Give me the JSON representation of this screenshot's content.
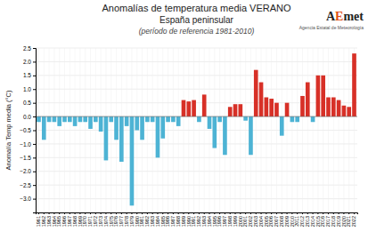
{
  "chart_data": {
    "type": "bar",
    "title": "Anomalías de temperatura media VERANO",
    "subtitle": [
      "España peninsular",
      "(período de referencia 1981-2010)"
    ],
    "y_label": "Anomalía Temp media (°C)",
    "annotations": [
      {
        "text": "A",
        "color": "#222222"
      },
      {
        "text": "E",
        "color": "#e05010"
      },
      {
        "text": "met",
        "color": "#222222"
      },
      {
        "text": "Agencia Estatal de Meteorología",
        "color": "#555555"
      }
    ],
    "categories": [
      "1961",
      "1962",
      "1963",
      "1964",
      "1965",
      "1966",
      "1967",
      "1968",
      "1969",
      "1970",
      "1971",
      "1972",
      "1973",
      "1974",
      "1975",
      "1976",
      "1977",
      "1978",
      "1979",
      "1980",
      "1981",
      "1982",
      "1983",
      "1984",
      "1985",
      "1986",
      "1987",
      "1988",
      "1989",
      "1990",
      "1991",
      "1992",
      "1993",
      "1994",
      "1995",
      "1996",
      "1997",
      "1998",
      "1999",
      "2000",
      "2001",
      "2002",
      "2003",
      "2004",
      "2005",
      "2006",
      "2007",
      "2008",
      "2009",
      "2010",
      "2011",
      "2012",
      "2013",
      "2014",
      "2015",
      "2016",
      "2017",
      "2018",
      "2019",
      "2020",
      "2021",
      "2022"
    ],
    "values": [
      -0.2,
      -0.85,
      -0.2,
      -0.2,
      -0.35,
      -0.2,
      -0.2,
      -0.35,
      -0.2,
      -0.2,
      -0.45,
      -0.2,
      -0.55,
      -1.6,
      -0.2,
      -0.85,
      -1.65,
      -0.35,
      -3.25,
      -0.5,
      -0.85,
      -0.2,
      -0.2,
      -1.5,
      -0.8,
      -0.2,
      -0.2,
      -0.35,
      0.6,
      0.55,
      0.6,
      -0.2,
      0.8,
      -0.45,
      -1.15,
      -0.2,
      -1.4,
      0.35,
      0.45,
      0.45,
      -0.15,
      -1.4,
      1.7,
      1.25,
      0.7,
      0.65,
      0.5,
      -0.7,
      0.5,
      -0.2,
      -0.2,
      0.75,
      1.25,
      -0.2,
      1.5,
      1.5,
      0.7,
      0.7,
      0.6,
      0.4,
      0.35,
      2.3
    ],
    "colors": [
      "#4db3d4",
      "#4db3d4",
      "#4db3d4",
      "#4db3d4",
      "#4db3d4",
      "#4db3d4",
      "#4db3d4",
      "#4db3d4",
      "#4db3d4",
      "#4db3d4",
      "#4db3d4",
      "#4db3d4",
      "#4db3d4",
      "#4db3d4",
      "#4db3d4",
      "#4db3d4",
      "#4db3d4",
      "#4db3d4",
      "#4db3d4",
      "#4db3d4",
      "#4db3d4",
      "#4db3d4",
      "#4db3d4",
      "#4db3d4",
      "#4db3d4",
      "#4db3d4",
      "#4db3d4",
      "#4db3d4",
      "#d73027",
      "#d73027",
      "#d73027",
      "#4db3d4",
      "#d73027",
      "#4db3d4",
      "#4db3d4",
      "#4db3d4",
      "#4db3d4",
      "#d73027",
      "#d73027",
      "#d73027",
      "#4db3d4",
      "#4db3d4",
      "#d73027",
      "#d73027",
      "#d73027",
      "#d73027",
      "#d73027",
      "#4db3d4",
      "#d73027",
      "#4db3d4",
      "#4db3d4",
      "#d73027",
      "#d73027",
      "#4db3d4",
      "#d73027",
      "#d73027",
      "#d73027",
      "#d73027",
      "#d73027",
      "#d73027",
      "#d73027",
      "#d73027"
    ],
    "ylim": [
      -3.5,
      2.5
    ],
    "yticks": [
      {
        "value": -3.0,
        "label": "−3.0"
      },
      {
        "value": -2.5,
        "label": "−2.5"
      },
      {
        "value": -2.0,
        "label": "−2.0"
      },
      {
        "value": -1.5,
        "label": "−1.5"
      },
      {
        "value": -1.0,
        "label": "−1.0"
      },
      {
        "value": -0.5,
        "label": "−0.5"
      },
      {
        "value": 0.0,
        "label": "0.0"
      },
      {
        "value": 0.5,
        "label": "0.5"
      },
      {
        "value": 1.0,
        "label": "1.0"
      },
      {
        "value": 1.5,
        "label": "1.5"
      },
      {
        "value": 2.0,
        "label": "2.0"
      },
      {
        "value": 2.5,
        "label": "2.5"
      }
    ],
    "grid": true
  }
}
